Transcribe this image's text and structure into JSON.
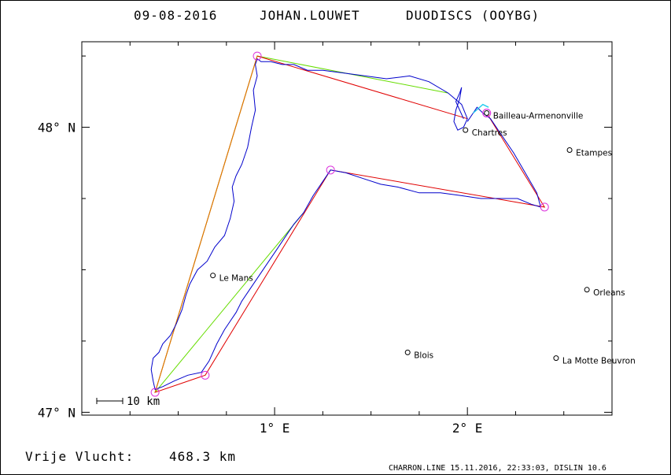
{
  "chart_data": {
    "type": "map-track",
    "title": {
      "date": "09-08-2016",
      "pilot": "JOHAN.LOUWET",
      "glider": "DUODISCS (OOYBG)"
    },
    "axes": {
      "x": {
        "unit": "deg E",
        "range": [
          0.0,
          2.75
        ],
        "ticks": [
          1.0,
          2.0
        ],
        "tick_labels": [
          "1° E",
          "2° E"
        ]
      },
      "y": {
        "unit": "deg N",
        "range": [
          46.99,
          48.3
        ],
        "ticks": [
          47.0,
          48.0
        ],
        "tick_labels": [
          "47° N",
          "48° N"
        ]
      }
    },
    "towns": [
      {
        "name": "Bailleau-Armenonville",
        "lon": 2.1,
        "lat": 48.05
      },
      {
        "name": "Chartres",
        "lon": 1.99,
        "lat": 47.99
      },
      {
        "name": "Etampes",
        "lon": 2.53,
        "lat": 47.92
      },
      {
        "name": "Le Mans",
        "lon": 0.68,
        "lat": 47.48
      },
      {
        "name": "Orleans",
        "lon": 2.62,
        "lat": 47.43
      },
      {
        "name": "Blois",
        "lon": 1.69,
        "lat": 47.21
      },
      {
        "name": "La Motte Beuvron",
        "lon": 2.46,
        "lat": 47.19
      }
    ],
    "turnpoints": [
      {
        "lon": 2.1,
        "lat": 48.05
      },
      {
        "lon": 0.91,
        "lat": 48.25
      },
      {
        "lon": 0.38,
        "lat": 47.07
      },
      {
        "lon": 0.64,
        "lat": 47.13
      },
      {
        "lon": 1.29,
        "lat": 47.85
      },
      {
        "lon": 2.4,
        "lat": 47.72
      },
      {
        "lon": 2.1,
        "lat": 48.05
      }
    ],
    "course_red": [
      [
        2.0,
        48.03
      ],
      [
        0.91,
        48.25
      ],
      [
        0.38,
        47.07
      ],
      [
        0.64,
        47.13
      ],
      [
        1.29,
        47.85
      ],
      [
        2.4,
        47.72
      ],
      [
        2.1,
        48.05
      ]
    ],
    "course_green": [
      [
        1.9,
        48.12
      ],
      [
        0.91,
        48.25
      ],
      [
        0.38,
        47.07
      ],
      [
        1.15,
        47.7
      ]
    ],
    "course_orange": [
      [
        0.91,
        48.25
      ],
      [
        0.38,
        47.07
      ]
    ],
    "track": [
      [
        1.98,
        48.03
      ],
      [
        1.94,
        48.09
      ],
      [
        1.96,
        48.12
      ],
      [
        1.97,
        48.14
      ],
      [
        1.96,
        48.1
      ],
      [
        1.94,
        48.06
      ],
      [
        1.93,
        48.02
      ],
      [
        1.95,
        47.99
      ],
      [
        1.98,
        48.0
      ],
      [
        2.0,
        48.03
      ],
      [
        1.97,
        48.08
      ],
      [
        1.9,
        48.12
      ],
      [
        1.8,
        48.16
      ],
      [
        1.7,
        48.18
      ],
      [
        1.58,
        48.17
      ],
      [
        1.47,
        48.18
      ],
      [
        1.36,
        48.19
      ],
      [
        1.25,
        48.2
      ],
      [
        1.17,
        48.2
      ],
      [
        1.1,
        48.22
      ],
      [
        1.04,
        48.22
      ],
      [
        0.98,
        48.23
      ],
      [
        0.93,
        48.23
      ],
      [
        0.91,
        48.24
      ],
      [
        0.9,
        48.22
      ],
      [
        0.91,
        48.18
      ],
      [
        0.89,
        48.13
      ],
      [
        0.9,
        48.06
      ],
      [
        0.88,
        48.0
      ],
      [
        0.86,
        47.93
      ],
      [
        0.83,
        47.87
      ],
      [
        0.8,
        47.83
      ],
      [
        0.78,
        47.79
      ],
      [
        0.79,
        47.74
      ],
      [
        0.77,
        47.68
      ],
      [
        0.74,
        47.62
      ],
      [
        0.69,
        47.58
      ],
      [
        0.65,
        47.53
      ],
      [
        0.6,
        47.5
      ],
      [
        0.56,
        47.45
      ],
      [
        0.54,
        47.41
      ],
      [
        0.52,
        47.36
      ],
      [
        0.49,
        47.31
      ],
      [
        0.46,
        47.27
      ],
      [
        0.42,
        47.24
      ],
      [
        0.4,
        47.21
      ],
      [
        0.37,
        47.19
      ],
      [
        0.36,
        47.15
      ],
      [
        0.37,
        47.11
      ],
      [
        0.38,
        47.08
      ],
      [
        0.42,
        47.09
      ],
      [
        0.48,
        47.11
      ],
      [
        0.55,
        47.13
      ],
      [
        0.62,
        47.14
      ],
      [
        0.66,
        47.18
      ],
      [
        0.7,
        47.24
      ],
      [
        0.74,
        47.29
      ],
      [
        0.77,
        47.32
      ],
      [
        0.8,
        47.35
      ],
      [
        0.83,
        47.39
      ],
      [
        0.87,
        47.43
      ],
      [
        0.92,
        47.48
      ],
      [
        0.96,
        47.52
      ],
      [
        1.0,
        47.56
      ],
      [
        1.05,
        47.61
      ],
      [
        1.1,
        47.66
      ],
      [
        1.15,
        47.7
      ],
      [
        1.2,
        47.76
      ],
      [
        1.25,
        47.81
      ],
      [
        1.29,
        47.85
      ],
      [
        1.37,
        47.84
      ],
      [
        1.46,
        47.82
      ],
      [
        1.55,
        47.8
      ],
      [
        1.64,
        47.79
      ],
      [
        1.75,
        47.77
      ],
      [
        1.86,
        47.77
      ],
      [
        1.97,
        47.76
      ],
      [
        2.07,
        47.75
      ],
      [
        2.17,
        47.75
      ],
      [
        2.26,
        47.75
      ],
      [
        2.33,
        47.73
      ],
      [
        2.38,
        47.72
      ],
      [
        2.36,
        47.77
      ],
      [
        2.3,
        47.84
      ],
      [
        2.24,
        47.91
      ],
      [
        2.17,
        47.98
      ],
      [
        2.12,
        48.03
      ],
      [
        2.08,
        48.05
      ],
      [
        2.05,
        48.07
      ],
      [
        2.03,
        48.05
      ],
      [
        2.0,
        48.02
      ]
    ],
    "track_cyan": [
      [
        2.03,
        48.05
      ],
      [
        2.08,
        48.08
      ],
      [
        2.11,
        48.07
      ]
    ],
    "scale_bar": {
      "label": "10 km"
    },
    "distance_label": "Vrije Vlucht:",
    "distance_value": "468.3 km",
    "footer": "CHARRON.LINE 15.11.2016, 22:33:03, DISLIN 10.6",
    "colors": {
      "track": "#0000cc",
      "course_red": "#e00000",
      "course_green": "#66dd00",
      "course_orange": "#e08000",
      "turnpoint": "#dd33dd",
      "cyan": "#22ccee"
    }
  }
}
